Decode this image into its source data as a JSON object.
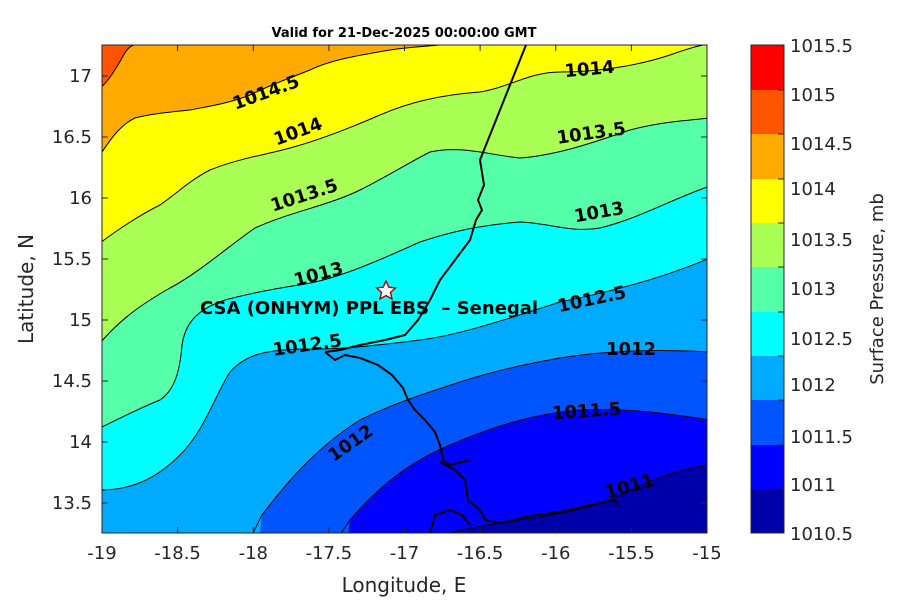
{
  "title": "Valid for 21-Dec-2025 00:00:00 GMT",
  "axes": {
    "xlabel": "Longitude, E",
    "ylabel": "Latitude, N",
    "xticks": [
      "-19",
      "-18.5",
      "-18",
      "-17.5",
      "-17",
      "-16.5",
      "-16",
      "-15.5",
      "-15"
    ],
    "yticks": [
      "17",
      "16.5",
      "16",
      "15.5",
      "15",
      "14.5",
      "14",
      "13.5"
    ]
  },
  "station": {
    "label": "CSA (ONHYM) PPL EBS  – Senegal",
    "marker_icon": "star-icon",
    "longitude": -17.13,
    "latitude": 15.22
  },
  "contour_labels": [
    "1014.5",
    "1014",
    "1014",
    "1013.5",
    "1013.5",
    "1013",
    "1013",
    "1012.5",
    "1012.5",
    "1012",
    "1012",
    "1011.5",
    "1011"
  ],
  "colorbar": {
    "label": "Surface Pressure, mb",
    "ticks": [
      "1015.5",
      "1015",
      "1014.5",
      "1014",
      "1013.5",
      "1013",
      "1012.5",
      "1012",
      "1011.5",
      "1011",
      "1010.5"
    ]
  },
  "chart_data": {
    "type": "heatmap",
    "title": "Valid for 21-Dec-2025 00:00:00 GMT",
    "xlabel": "Longitude, E",
    "ylabel": "Latitude, N",
    "xlim": [
      -19,
      -15
    ],
    "ylim": [
      13.25,
      17.25
    ],
    "levels": [
      1010.5,
      1011,
      1011.5,
      1012,
      1012.5,
      1013,
      1013.5,
      1014,
      1014.5,
      1015,
      1015.5
    ],
    "level_colors": [
      "#0000aa",
      "#0000ff",
      "#0055ff",
      "#00aaff",
      "#00ffff",
      "#55ffaa",
      "#aaff55",
      "#ffff00",
      "#ffaa00",
      "#ff5500",
      "#ff0000"
    ],
    "colorbar_label": "Surface Pressure, mb"
  }
}
